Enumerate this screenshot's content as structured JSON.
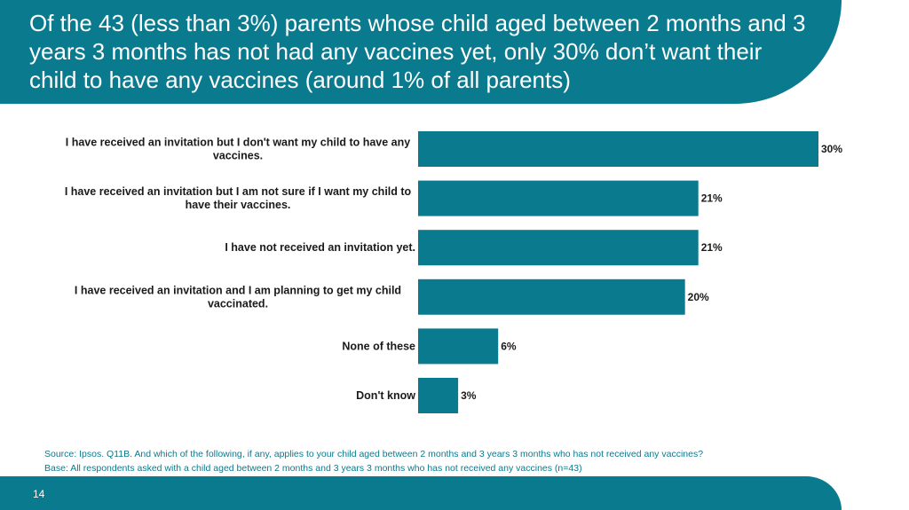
{
  "title": "Of the 43 (less than 3%) parents whose child aged between 2 months and 3 years 3 months has not had any vaccines yet, only 30% don’t want their child to have any vaccines (around 1% of all parents)",
  "source": "Source: Ipsos. Q11B. And which of the following, if any, applies to your child aged between 2 months and 3 years 3 months who has not received any vaccines?",
  "base": "Base: All respondents asked with a child aged between 2 months and 3 years 3 months who has not received any vaccines (n=43)",
  "page_number": "14",
  "colors": {
    "accent": "#0a7a8f",
    "bar": "#0a7a8f"
  },
  "chart_data": {
    "type": "bar",
    "orientation": "horizontal",
    "categories": [
      [
        "I have received an invitation but I don't want my child to have any",
        "vaccines."
      ],
      [
        "I have received an invitation but I am not sure if I want my child to",
        "have their vaccines."
      ],
      [
        "I have not received an invitation yet."
      ],
      [
        "I have received an invitation and I am planning to get my child",
        "vaccinated."
      ],
      [
        "None of these"
      ],
      [
        "Don't know"
      ]
    ],
    "values": [
      30,
      21,
      21,
      20,
      6,
      3
    ],
    "data_labels": [
      "30%",
      "21%",
      "21%",
      "20%",
      "6%",
      "3%"
    ],
    "unit": "%",
    "xlim": [
      0,
      30
    ],
    "grid": false,
    "legend": "none"
  }
}
